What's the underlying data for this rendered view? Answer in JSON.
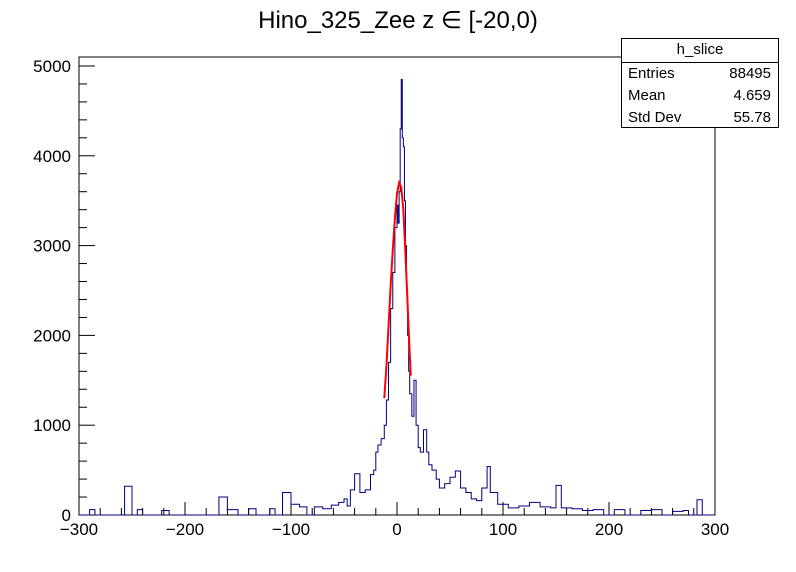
{
  "chart_data": {
    "type": "histogram",
    "title": "Hino_325_Zee z  ∈ [-20,0)",
    "xlabel": "",
    "ylabel": "",
    "xlim": [
      -300,
      300
    ],
    "ylim": [
      0,
      5100
    ],
    "xticks": [
      -300,
      -200,
      -100,
      0,
      100,
      200,
      300
    ],
    "yticks": [
      0,
      1000,
      2000,
      3000,
      4000,
      5000
    ],
    "series": [
      {
        "kind": "histogram",
        "color": "#000080",
        "points": [
          [
            -290,
            60
          ],
          [
            -285,
            0
          ],
          [
            -257,
            320
          ],
          [
            -250,
            0
          ],
          [
            -245,
            60
          ],
          [
            -240,
            0
          ],
          [
            -222,
            50
          ],
          [
            -215,
            0
          ],
          [
            -175,
            0
          ],
          [
            -168,
            200
          ],
          [
            -160,
            60
          ],
          [
            -150,
            0
          ],
          [
            -140,
            70
          ],
          [
            -133,
            0
          ],
          [
            -120,
            70
          ],
          [
            -115,
            0
          ],
          [
            -108,
            250
          ],
          [
            -100,
            120
          ],
          [
            -92,
            90
          ],
          [
            -85,
            0
          ],
          [
            -78,
            90
          ],
          [
            -70,
            70
          ],
          [
            -62,
            110
          ],
          [
            -55,
            140
          ],
          [
            -50,
            180
          ],
          [
            -47,
            100
          ],
          [
            -44,
            280
          ],
          [
            -40,
            460
          ],
          [
            -35,
            250
          ],
          [
            -30,
            280
          ],
          [
            -25,
            450
          ],
          [
            -22,
            500
          ],
          [
            -20,
            700
          ],
          [
            -18,
            780
          ],
          [
            -15,
            850
          ],
          [
            -12,
            1000
          ],
          [
            -10,
            1280
          ],
          [
            -8,
            1700
          ],
          [
            -6,
            2300
          ],
          [
            -4,
            2700
          ],
          [
            -2,
            3200
          ],
          [
            0,
            3450
          ],
          [
            1,
            3250
          ],
          [
            2,
            3600
          ],
          [
            3,
            4300
          ],
          [
            4,
            4850
          ],
          [
            5,
            4200
          ],
          [
            6,
            4100
          ],
          [
            7,
            3500
          ],
          [
            8,
            3000
          ],
          [
            9,
            2500
          ],
          [
            10,
            2000
          ],
          [
            11,
            1600
          ],
          [
            12,
            1350
          ],
          [
            14,
            1100
          ],
          [
            16,
            1500
          ],
          [
            18,
            1000
          ],
          [
            20,
            750
          ],
          [
            22,
            700
          ],
          [
            25,
            950
          ],
          [
            28,
            700
          ],
          [
            30,
            560
          ],
          [
            33,
            500
          ],
          [
            37,
            400
          ],
          [
            40,
            300
          ],
          [
            45,
            350
          ],
          [
            50,
            420
          ],
          [
            55,
            490
          ],
          [
            60,
            300
          ],
          [
            65,
            250
          ],
          [
            70,
            180
          ],
          [
            75,
            160
          ],
          [
            80,
            300
          ],
          [
            85,
            540
          ],
          [
            88,
            250
          ],
          [
            95,
            120
          ],
          [
            105,
            80
          ],
          [
            115,
            100
          ],
          [
            125,
            140
          ],
          [
            135,
            90
          ],
          [
            145,
            80
          ],
          [
            150,
            330
          ],
          [
            155,
            80
          ],
          [
            165,
            70
          ],
          [
            175,
            50
          ],
          [
            185,
            60
          ],
          [
            195,
            0
          ],
          [
            205,
            60
          ],
          [
            215,
            0
          ],
          [
            230,
            50
          ],
          [
            240,
            60
          ],
          [
            250,
            0
          ],
          [
            260,
            40
          ],
          [
            270,
            50
          ],
          [
            275,
            0
          ],
          [
            283,
            170
          ],
          [
            288,
            0
          ]
        ]
      },
      {
        "kind": "fit",
        "color": "#ff0000",
        "points": [
          [
            -12,
            1300
          ],
          [
            -10,
            1650
          ],
          [
            -8,
            2100
          ],
          [
            -6,
            2550
          ],
          [
            -4,
            2950
          ],
          [
            -2,
            3300
          ],
          [
            0,
            3580
          ],
          [
            2,
            3700
          ],
          [
            4,
            3650
          ],
          [
            6,
            3400
          ],
          [
            8,
            2900
          ],
          [
            10,
            2350
          ],
          [
            12,
            1800
          ],
          [
            13,
            1550
          ]
        ]
      }
    ]
  },
  "stats_box": {
    "name": "h_slice",
    "rows": [
      {
        "label": "Entries",
        "value": "88495"
      },
      {
        "label": "Mean",
        "value": "4.659"
      },
      {
        "label": "Std Dev",
        "value": "55.78"
      }
    ]
  }
}
